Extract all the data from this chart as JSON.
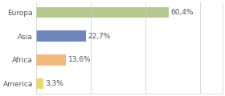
{
  "categories": [
    "Europa",
    "Asia",
    "Africa",
    "America"
  ],
  "values": [
    60.4,
    22.7,
    13.6,
    3.3
  ],
  "labels": [
    "60,4%",
    "22,7%",
    "13,6%",
    "3,3%"
  ],
  "bar_colors": [
    "#b5c98e",
    "#6d87b8",
    "#f0b87a",
    "#e8d96a"
  ],
  "background_color": "#ffffff",
  "label_fontsize": 6.5,
  "tick_fontsize": 6.5,
  "bar_height": 0.45,
  "xlim": [
    0,
    85
  ]
}
